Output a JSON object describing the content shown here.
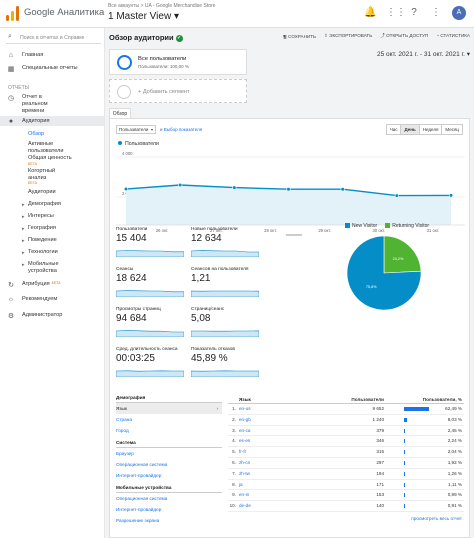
{
  "app": {
    "name": "Google Аналитика",
    "account_line": "Все аккаунты > UA - Google Merchandise Store",
    "view": "1 Master View ▾",
    "avatar_letter": "A"
  },
  "sidebar": {
    "search_placeholder": "Поиск в отчетах и Справке",
    "items": [
      {
        "icon": "home-icon",
        "glyph": "⌂",
        "label": "Главная"
      },
      {
        "icon": "grid-icon",
        "glyph": "▦",
        "label": "Специальные отчеты"
      },
      {
        "icon": "clock-icon",
        "glyph": "◷",
        "label": "Отчет в реальном времени"
      },
      {
        "icon": "person-icon",
        "glyph": "●",
        "label": "Аудитория"
      },
      {
        "icon": "attribution-icon",
        "glyph": "↻",
        "label": "Атрибуция"
      },
      {
        "icon": "bulb-icon",
        "glyph": "☼",
        "label": "Рекомендуем"
      },
      {
        "icon": "settings-icon",
        "glyph": "⚙",
        "label": "Администратор"
      }
    ],
    "section_reports": "ОТЧЕТЫ",
    "beta": "БЕТА",
    "audience_sub": [
      "Обзор",
      "Активные пользователи",
      "Общая ценность",
      "Когортный анализ",
      "Аудитории",
      "Демография",
      "Интересы",
      "География",
      "Поведение",
      "Технологии",
      "Мобильные устройства"
    ]
  },
  "header": {
    "title": "Обзор аудитории",
    "actions": [
      "СОХРАНИТЬ",
      "ЭКСПОРТИРОВАТЬ",
      "ОТКРЫТЬ ДОСТУП",
      "СТАТИСТИКА"
    ],
    "date_range": "25 окт. 2021 г. - 31 окт. 2021 г. ▾"
  },
  "segment": {
    "name": "Все пользователи",
    "sub": "Пользователи: 100,00 %",
    "add": "+ Добавить сегмент"
  },
  "tab_overview": "Обзор",
  "controls": {
    "metric": "Пользователи",
    "vs_prefix": "и",
    "vs_link": "Выбор показателя",
    "granularity": [
      "Час",
      "День",
      "Неделя",
      "Месяц"
    ],
    "granularity_selected": "День"
  },
  "chart_data": {
    "type": "line",
    "series": [
      {
        "name": "Пользователи",
        "values": [
          2400,
          2600,
          2470,
          2390,
          2390,
          2070,
          2080
        ]
      }
    ],
    "x": [
      "",
      "26 окт.",
      "27 окт.",
      "28 окт.",
      "29 окт.",
      "30 окт.",
      "31 окт."
    ],
    "y_ticks": [
      "4 000",
      "2 000"
    ],
    "ylim": [
      0,
      4000
    ],
    "color": "#058dc7"
  },
  "metrics": [
    {
      "label": "Пользователи",
      "value": "15 404",
      "spark": [
        0.6,
        0.65,
        0.62,
        0.6,
        0.6,
        0.52,
        0.52
      ]
    },
    {
      "label": "Новые пользователи",
      "value": "12 634",
      "spark": [
        0.6,
        0.66,
        0.62,
        0.6,
        0.6,
        0.5,
        0.5
      ]
    },
    {
      "label": "Сеансы",
      "value": "18 624",
      "spark": [
        0.6,
        0.64,
        0.62,
        0.6,
        0.6,
        0.52,
        0.52
      ]
    },
    {
      "label": "Сеансов на пользователя",
      "value": "1,21",
      "spark": [
        0.6,
        0.58,
        0.6,
        0.6,
        0.6,
        0.6,
        0.58
      ]
    },
    {
      "label": "Просмотры страниц",
      "value": "94 684",
      "spark": [
        0.6,
        0.66,
        0.62,
        0.58,
        0.58,
        0.5,
        0.5
      ]
    },
    {
      "label": "Страниц/сеанс",
      "value": "5,08",
      "spark": [
        0.6,
        0.6,
        0.58,
        0.58,
        0.6,
        0.6,
        0.62
      ]
    },
    {
      "label": "Сред. длительность сеанса",
      "value": "00:03:25",
      "spark": [
        0.6,
        0.62,
        0.58,
        0.6,
        0.62,
        0.6,
        0.6
      ]
    },
    {
      "label": "Показатель отказов",
      "value": "45,89 %",
      "spark": [
        0.6,
        0.58,
        0.6,
        0.62,
        0.6,
        0.6,
        0.6
      ]
    }
  ],
  "pie": {
    "legend": [
      {
        "name": "New Visitor",
        "color": "#058dc7"
      },
      {
        "name": "Returning Visitor",
        "color": "#50b432"
      }
    ],
    "slices": [
      {
        "name": "New Visitor",
        "value": 75.8,
        "label": "75,8%",
        "color": "#058dc7"
      },
      {
        "name": "Returning Visitor",
        "value": 24.2,
        "label": "24,2%",
        "color": "#50b432"
      }
    ]
  },
  "demographics": {
    "groups": [
      {
        "header": "Демография",
        "rows": [
          "Язык",
          "Страна",
          "Город"
        ],
        "selected": 0
      },
      {
        "header": "Система",
        "rows": [
          "Браузер",
          "Операционная система",
          "Интернет-провайдер"
        ],
        "selected": -1
      },
      {
        "header": "Мобильные устройства",
        "rows": [
          "Операционная система",
          "Интернет-провайдер",
          "Разрешение экрана"
        ],
        "selected": -1
      }
    ]
  },
  "language_table": {
    "headers": {
      "lang": "Язык",
      "users": "Пользователи",
      "pct": "Пользователи, %"
    },
    "rows": [
      {
        "idx": "1.",
        "lang": "en-us",
        "users": "9 652",
        "pct": "62,49 %",
        "frac": 0.6249
      },
      {
        "idx": "2.",
        "lang": "en-gb",
        "users": "1 240",
        "pct": "8,03 %",
        "frac": 0.0803
      },
      {
        "idx": "3.",
        "lang": "en-ca",
        "users": "379",
        "pct": "2,45 %",
        "frac": 0.0245
      },
      {
        "idx": "4.",
        "lang": "es-es",
        "users": "346",
        "pct": "2,24 %",
        "frac": 0.0224
      },
      {
        "idx": "5.",
        "lang": "fr-fr",
        "users": "315",
        "pct": "2,04 %",
        "frac": 0.0204
      },
      {
        "idx": "6.",
        "lang": "zh-cn",
        "users": "297",
        "pct": "1,92 %",
        "frac": 0.0192
      },
      {
        "idx": "7.",
        "lang": "zh-tw",
        "users": "194",
        "pct": "1,26 %",
        "frac": 0.0126
      },
      {
        "idx": "8.",
        "lang": "ja",
        "users": "171",
        "pct": "1,11 %",
        "frac": 0.0111
      },
      {
        "idx": "9.",
        "lang": "en-in",
        "users": "153",
        "pct": "0,99 %",
        "frac": 0.0099
      },
      {
        "idx": "10.",
        "lang": "de-de",
        "users": "140",
        "pct": "0,91 %",
        "frac": 0.0091
      }
    ],
    "full_report": "просмотреть весь отчет"
  }
}
